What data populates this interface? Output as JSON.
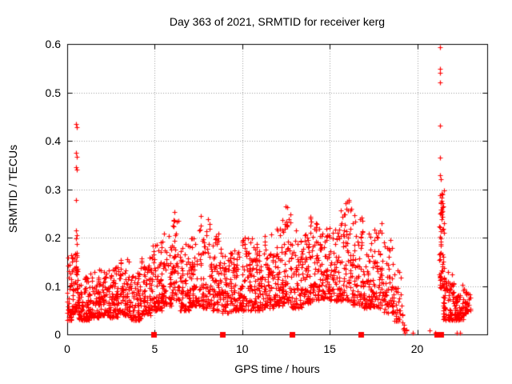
{
  "chart_data": {
    "type": "scatter",
    "title": "Day 363 of 2021, SRMTID for receiver kerg",
    "xlabel": "GPS time / hours",
    "ylabel": "SRMTID / TECUs",
    "xlim": [
      0,
      24
    ],
    "ylim": [
      0,
      0.6
    ],
    "xticks": [
      0,
      5,
      10,
      15,
      20
    ],
    "xtick_labels": [
      "0",
      "5",
      "10",
      "15",
      "20"
    ],
    "yticks": [
      0,
      0.1,
      0.2,
      0.3,
      0.4,
      0.5,
      0.6
    ],
    "ytick_labels": [
      "0",
      "0.1",
      "0.2",
      "0.3",
      "0.4",
      "0.5",
      "0.6"
    ],
    "grid": "dotted",
    "legend": "none",
    "marker": "plus",
    "marker_size": 7,
    "point_color": "#ff0000",
    "grid_color": "#9a9a9a",
    "border_color": "#000000",
    "seed": 20211363,
    "cloud_envelope_segments_x0_x1_n_lo_hi_exp": [
      [
        0.0,
        0.3,
        45,
        0.03,
        0.17,
        1.8
      ],
      [
        0.3,
        0.45,
        25,
        0.04,
        0.16,
        1.8
      ],
      [
        0.45,
        0.6,
        30,
        0.05,
        0.17,
        1.5
      ],
      [
        0.6,
        0.9,
        40,
        0.03,
        0.12,
        1.8
      ],
      [
        0.9,
        1.3,
        55,
        0.03,
        0.12,
        1.9
      ],
      [
        1.3,
        1.8,
        65,
        0.035,
        0.13,
        1.9
      ],
      [
        1.8,
        2.4,
        75,
        0.04,
        0.14,
        1.9
      ],
      [
        2.4,
        3.0,
        75,
        0.035,
        0.14,
        1.9
      ],
      [
        3.0,
        3.6,
        75,
        0.04,
        0.16,
        1.9
      ],
      [
        3.6,
        4.2,
        75,
        0.03,
        0.13,
        1.9
      ],
      [
        4.2,
        4.8,
        75,
        0.04,
        0.16,
        1.9
      ],
      [
        4.8,
        5.4,
        75,
        0.05,
        0.19,
        1.9
      ],
      [
        5.4,
        6.0,
        70,
        0.06,
        0.21,
        1.9
      ],
      [
        6.0,
        6.45,
        50,
        0.07,
        0.265,
        1.7
      ],
      [
        6.45,
        7.0,
        65,
        0.05,
        0.19,
        1.9
      ],
      [
        7.0,
        7.6,
        70,
        0.06,
        0.215,
        1.9
      ],
      [
        7.6,
        8.2,
        70,
        0.055,
        0.245,
        1.8
      ],
      [
        8.2,
        8.8,
        70,
        0.05,
        0.21,
        1.9
      ],
      [
        8.8,
        9.4,
        70,
        0.045,
        0.17,
        1.9
      ],
      [
        9.4,
        10.0,
        70,
        0.05,
        0.175,
        1.9
      ],
      [
        10.0,
        10.6,
        70,
        0.05,
        0.21,
        1.9
      ],
      [
        10.6,
        11.2,
        70,
        0.05,
        0.19,
        1.9
      ],
      [
        11.2,
        11.8,
        70,
        0.055,
        0.21,
        1.9
      ],
      [
        11.8,
        12.3,
        60,
        0.06,
        0.22,
        1.8
      ],
      [
        12.3,
        12.8,
        60,
        0.065,
        0.27,
        1.7
      ],
      [
        12.8,
        13.4,
        70,
        0.055,
        0.22,
        1.9
      ],
      [
        13.4,
        13.9,
        60,
        0.065,
        0.21,
        1.9
      ],
      [
        13.9,
        14.45,
        60,
        0.07,
        0.25,
        1.8
      ],
      [
        14.45,
        15.0,
        65,
        0.075,
        0.22,
        1.9
      ],
      [
        15.0,
        15.6,
        70,
        0.07,
        0.22,
        1.9
      ],
      [
        15.6,
        16.3,
        80,
        0.07,
        0.285,
        1.8
      ],
      [
        16.3,
        16.9,
        70,
        0.06,
        0.25,
        1.9
      ],
      [
        16.9,
        17.5,
        70,
        0.055,
        0.21,
        1.9
      ],
      [
        17.5,
        18.05,
        60,
        0.055,
        0.25,
        1.8
      ],
      [
        18.05,
        18.65,
        60,
        0.045,
        0.195,
        1.9
      ],
      [
        18.65,
        19.1,
        30,
        0.025,
        0.155,
        2.0
      ],
      [
        19.1,
        19.4,
        8,
        0.005,
        0.05,
        1.5
      ],
      [
        21.25,
        21.55,
        60,
        0.095,
        0.3,
        1.4
      ],
      [
        21.45,
        22.15,
        85,
        0.03,
        0.13,
        1.7
      ],
      [
        22.15,
        22.75,
        70,
        0.03,
        0.11,
        1.7
      ],
      [
        22.75,
        23.05,
        25,
        0.04,
        0.09,
        1.5
      ]
    ],
    "outlier_points": [
      [
        0.52,
        0.435
      ],
      [
        0.53,
        0.428
      ],
      [
        0.52,
        0.375
      ],
      [
        0.53,
        0.367
      ],
      [
        0.52,
        0.346
      ],
      [
        0.53,
        0.34
      ],
      [
        0.52,
        0.277
      ],
      [
        0.52,
        0.215
      ],
      [
        0.53,
        0.205
      ],
      [
        0.52,
        0.198
      ],
      [
        0.53,
        0.186
      ],
      [
        21.3,
        0.593
      ],
      [
        21.31,
        0.548
      ],
      [
        21.3,
        0.541
      ],
      [
        21.32,
        0.521
      ],
      [
        21.31,
        0.432
      ],
      [
        21.3,
        0.366
      ],
      [
        21.31,
        0.329
      ],
      [
        21.33,
        0.321
      ],
      [
        21.3,
        0.288
      ],
      [
        21.36,
        0.272
      ],
      [
        21.33,
        0.258
      ],
      [
        21.42,
        0.255
      ],
      [
        21.3,
        0.222
      ],
      [
        21.36,
        0.214
      ],
      [
        18.93,
        0.034
      ],
      [
        19.2,
        0.012
      ],
      [
        19.31,
        0.003
      ],
      [
        19.76,
        0.003
      ],
      [
        20.72,
        0.009
      ],
      [
        21.02,
        0.003
      ],
      [
        22.28,
        0.003
      ],
      [
        22.45,
        0.003
      ]
    ],
    "gap_markers": {
      "marker": "filled-square",
      "color": "#ff0000",
      "y": 0,
      "x": [
        4.92,
        8.87,
        12.85,
        16.77,
        21.1,
        21.33
      ]
    }
  }
}
